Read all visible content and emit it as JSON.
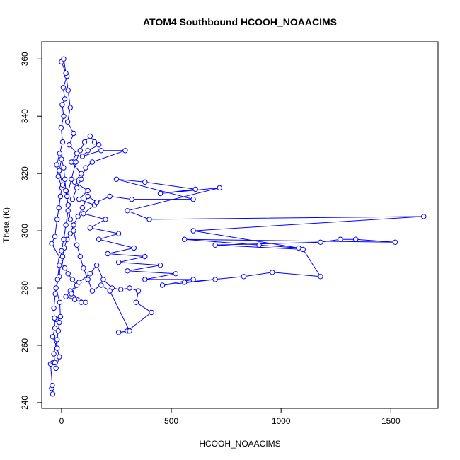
{
  "chart_data": {
    "type": "line",
    "title": "ATOM4 Southbound HCOOH_NOAACIMS",
    "xlabel": "HCOOH_NOAACIMS",
    "ylabel": "Theta (K)",
    "xlim": [
      -90,
      1715
    ],
    "ylim": [
      238,
      366
    ],
    "xticks": [
      0,
      500,
      1000,
      1500
    ],
    "yticks": [
      240,
      260,
      280,
      300,
      320,
      340,
      360
    ],
    "grid": false,
    "legend": "none",
    "marker": "open-circle",
    "series_color": "#0000ff",
    "series": [
      {
        "values": [
          [
            -40,
            243
          ],
          [
            -45,
            245
          ],
          [
            -42,
            246
          ],
          [
            -50,
            253.5
          ],
          [
            -38,
            254
          ],
          [
            -30,
            254
          ],
          [
            -35,
            257
          ],
          [
            -20,
            262
          ],
          [
            -15,
            265
          ],
          [
            -10,
            268
          ],
          [
            -25,
            269
          ],
          [
            -32,
            269.5
          ],
          [
            -5,
            270
          ],
          [
            -8,
            275
          ],
          [
            -25,
            280
          ],
          [
            -10,
            284
          ],
          [
            -3,
            290
          ],
          [
            -45,
            295.5
          ],
          [
            -30,
            298
          ],
          [
            -20,
            304
          ],
          [
            -12,
            308
          ],
          [
            -5,
            312
          ],
          [
            2,
            315
          ],
          [
            -15,
            319
          ],
          [
            -22,
            323
          ],
          [
            -8,
            327
          ],
          [
            5,
            331
          ],
          [
            -2,
            336
          ],
          [
            10,
            340
          ],
          [
            3,
            344
          ],
          [
            15,
            346
          ],
          [
            8,
            350
          ],
          [
            25,
            354
          ],
          [
            0,
            359
          ],
          [
            10,
            360
          ],
          [
            20,
            355
          ],
          [
            30,
            349
          ],
          [
            40,
            343
          ],
          [
            28,
            338
          ],
          [
            55,
            334
          ],
          [
            35,
            330
          ],
          [
            70,
            327
          ],
          [
            45,
            324
          ],
          [
            90,
            320
          ],
          [
            60,
            317
          ],
          [
            120,
            314
          ],
          [
            80,
            311
          ],
          [
            150,
            309
          ],
          [
            100,
            306
          ],
          [
            200,
            304
          ],
          [
            130,
            301
          ],
          [
            260,
            299
          ],
          [
            170,
            297
          ],
          [
            330,
            294
          ],
          [
            210,
            292
          ],
          [
            380,
            291
          ],
          [
            260,
            289
          ],
          [
            450,
            288
          ],
          [
            300,
            286
          ],
          [
            520,
            285
          ],
          [
            380,
            283
          ],
          [
            600,
            283
          ],
          [
            460,
            281
          ],
          [
            700,
            283
          ],
          [
            560,
            282
          ],
          [
            830,
            284
          ],
          [
            960,
            285.5
          ],
          [
            1180,
            284
          ],
          [
            1100,
            293.5
          ],
          [
            700,
            295
          ],
          [
            1180,
            296
          ],
          [
            1270,
            297
          ],
          [
            1340,
            297
          ],
          [
            1520,
            296
          ],
          [
            560,
            297
          ],
          [
            900,
            295
          ],
          [
            1080,
            294
          ],
          [
            600,
            300
          ],
          [
            1650,
            305
          ],
          [
            400,
            304
          ],
          [
            300,
            307
          ],
          [
            720,
            315
          ],
          [
            450,
            313
          ],
          [
            610,
            314.5
          ],
          [
            380,
            317
          ],
          [
            250,
            318
          ],
          [
            600,
            311
          ],
          [
            320,
            311
          ],
          [
            220,
            312
          ],
          [
            160,
            310
          ],
          [
            120,
            312
          ],
          [
            95,
            308
          ],
          [
            75,
            305
          ],
          [
            55,
            302
          ],
          [
            40,
            299
          ],
          [
            25,
            297
          ],
          [
            12,
            294
          ],
          [
            5,
            291
          ],
          [
            -5,
            289
          ],
          [
            15,
            287
          ],
          [
            30,
            285
          ],
          [
            50,
            283
          ],
          [
            70,
            281
          ],
          [
            40,
            279
          ],
          [
            20,
            277
          ],
          [
            60,
            276
          ],
          [
            90,
            275
          ],
          [
            110,
            275
          ],
          [
            45,
            278
          ],
          [
            80,
            282
          ],
          [
            130,
            285
          ],
          [
            160,
            288
          ],
          [
            190,
            283
          ],
          [
            230,
            280
          ],
          [
            270,
            279.5
          ],
          [
            310,
            280
          ],
          [
            350,
            279
          ],
          [
            340,
            275
          ],
          [
            410,
            271.5
          ],
          [
            300,
            265
          ],
          [
            260,
            264.5
          ],
          [
            310,
            265
          ],
          [
            220,
            279
          ],
          [
            180,
            281
          ],
          [
            140,
            279
          ],
          [
            120,
            283
          ],
          [
            100,
            287
          ],
          [
            85,
            291
          ],
          [
            70,
            295
          ],
          [
            55,
            300
          ],
          [
            40,
            304
          ],
          [
            30,
            309
          ],
          [
            20,
            314
          ],
          [
            15,
            318
          ],
          [
            10,
            322
          ],
          [
            0,
            325
          ],
          [
            -10,
            321
          ],
          [
            5,
            316
          ],
          [
            25,
            312
          ],
          [
            45,
            318
          ],
          [
            65,
            324
          ],
          [
            85,
            328
          ],
          [
            105,
            331
          ],
          [
            130,
            333
          ],
          [
            150,
            331
          ],
          [
            170,
            330
          ],
          [
            120,
            328
          ],
          [
            95,
            326
          ],
          [
            180,
            328
          ],
          [
            290,
            328
          ],
          [
            140,
            324
          ],
          [
            110,
            322
          ],
          [
            90,
            318
          ],
          [
            70,
            315
          ],
          [
            50,
            311
          ],
          [
            30,
            307
          ],
          [
            20,
            302
          ],
          [
            10,
            297
          ],
          [
            0,
            293
          ],
          [
            -10,
            288
          ],
          [
            -18,
            283
          ],
          [
            -28,
            278
          ],
          [
            -35,
            273
          ],
          [
            -30,
            266
          ],
          [
            -40,
            263
          ],
          [
            -20,
            259
          ],
          [
            -10,
            256
          ],
          [
            -25,
            252
          ]
        ]
      }
    ]
  }
}
